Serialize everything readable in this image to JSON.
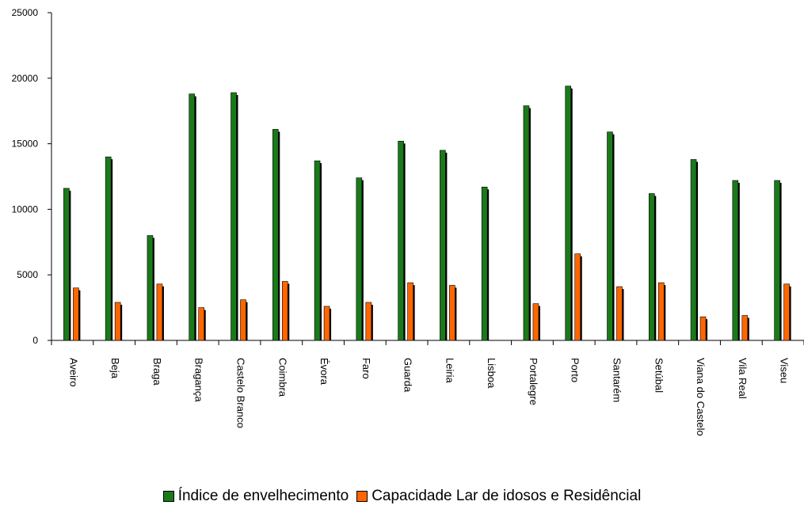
{
  "chart_data": {
    "type": "bar",
    "categories": [
      "Aveiro",
      "Beja",
      "Braga",
      "Bragança",
      "Castelo Branco",
      "Coimbra",
      "Évora",
      "Faro",
      "Guarda",
      "Leiria",
      "Lisboa",
      "Portalegre",
      "Porto",
      "Santarém",
      "Setúbal",
      "Viana do Castelo",
      "Vila Real",
      "Viseu"
    ],
    "series": [
      {
        "name": "Índice de envelhecimento",
        "color": "#1a7a1a",
        "values": [
          11600,
          14000,
          8000,
          18800,
          18900,
          16100,
          13700,
          12400,
          15200,
          14500,
          11700,
          17900,
          19400,
          15900,
          11200,
          13800,
          12200,
          12200
        ]
      },
      {
        "name": "Capacidade Lar de idosos e Residêncial",
        "color": "#ff6600",
        "values": [
          4000,
          2900,
          4300,
          2500,
          3100,
          4500,
          2600,
          2900,
          4400,
          4200,
          0,
          2800,
          6600,
          4100,
          4400,
          1800,
          1900,
          4300
        ]
      }
    ],
    "yticks": [
      "0",
      "5000",
      "10000",
      "15000",
      "20000",
      "25000"
    ],
    "ylim": [
      0,
      25000
    ],
    "grid": false,
    "legend_position": "bottom"
  }
}
